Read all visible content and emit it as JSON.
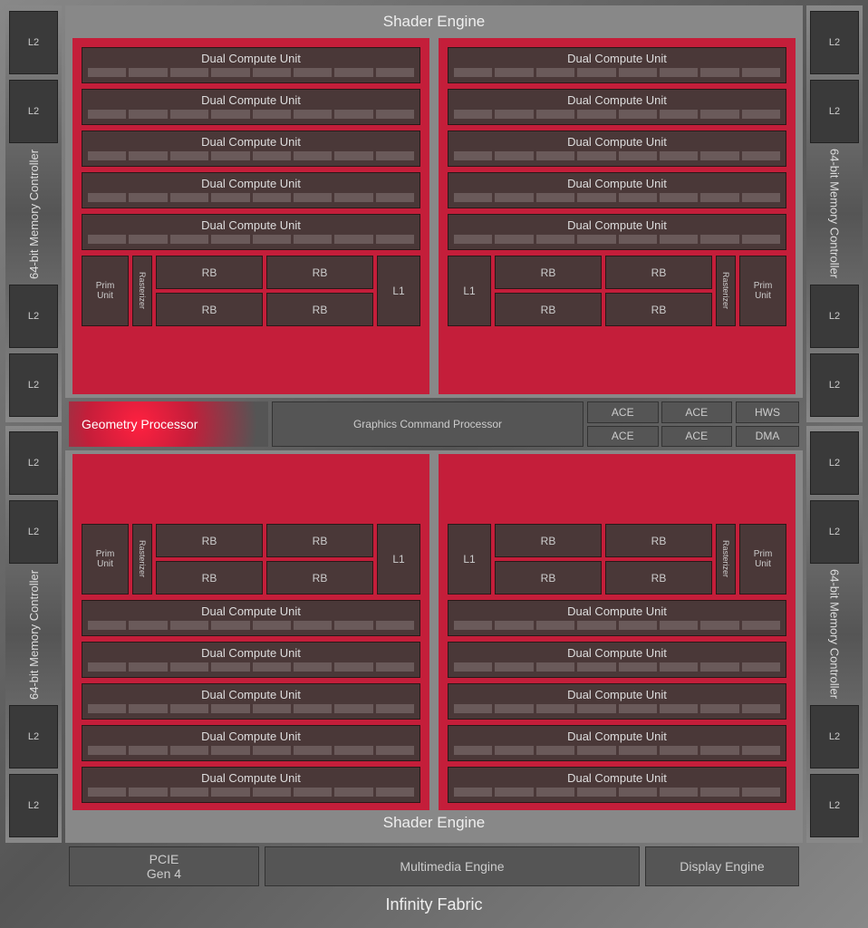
{
  "colors": {
    "background_gradient": [
      "#888888",
      "#555555"
    ],
    "shader_array_bg": "#c41e3a",
    "block_bg": "#4a3838",
    "block_border": "#2a1818",
    "cell_bg": "#6a5a5a",
    "panel_bg": "#555555",
    "text_light": "#dddddd",
    "geo_glow": "#ff2040"
  },
  "l2_label": "L2",
  "l2_per_controller": 4,
  "mem_controller": "64-bit Memory Controller",
  "shader_engine_title": "Shader Engine",
  "dcu_label": "Dual Compute Unit",
  "dcu_per_array": 5,
  "dcu_cells": 8,
  "prim_unit": "Prim\nUnit",
  "rasterizer": "Rasterizer",
  "rb": "RB",
  "l1": "L1",
  "geometry_processor": "Geometry Processor",
  "gcp": "Graphics Command Processor",
  "ace": "ACE",
  "hws": "HWS",
  "dma": "DMA",
  "pcie": "PCIE\nGen 4",
  "multimedia": "Multimedia Engine",
  "display": "Display Engine",
  "infinity": "Infinity Fabric"
}
